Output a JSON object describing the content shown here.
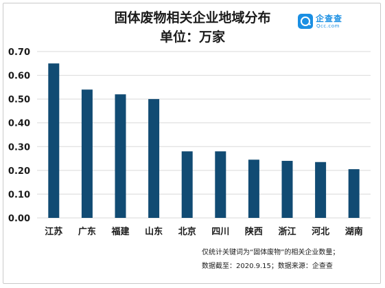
{
  "header": {
    "title": "固体废物相关企业地域分布",
    "subtitle": "单位：万家"
  },
  "logo": {
    "name": "企查查",
    "domain": "Qcc.com",
    "icon": "magnifier-icon",
    "color": "#1a8fe3"
  },
  "chart_data": {
    "type": "bar",
    "title": "固体废物相关企业地域分布",
    "subtitle": "单位：万家",
    "xlabel": "",
    "ylabel": "",
    "categories": [
      "江苏",
      "广东",
      "福建",
      "山东",
      "北京",
      "四川",
      "陕西",
      "浙江",
      "河北",
      "湖南"
    ],
    "values": [
      0.65,
      0.54,
      0.52,
      0.5,
      0.28,
      0.28,
      0.245,
      0.24,
      0.235,
      0.205
    ],
    "ylim": [
      0,
      0.7
    ],
    "yticks": [
      "0.00",
      "0.10",
      "0.20",
      "0.30",
      "0.40",
      "0.50",
      "0.60",
      "0.70"
    ],
    "grid": true,
    "bar_color": "#114b73",
    "grid_color": "#d9d9d9"
  },
  "footnote": {
    "line1": "仅统计关键词为“固体废物”的相关企业数量；",
    "line2": "数据截至：2020.9.15；数据来源：企查查"
  }
}
